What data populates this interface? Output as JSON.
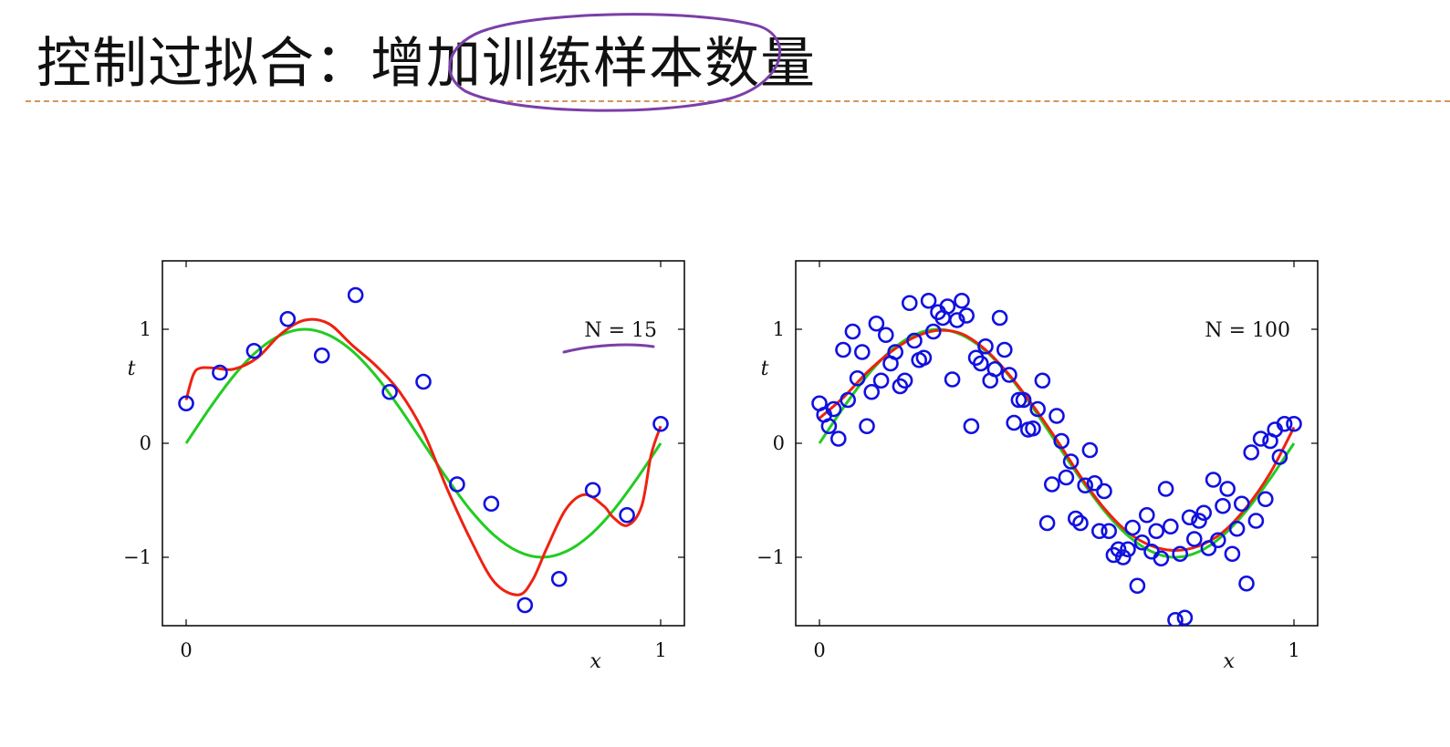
{
  "slide": {
    "title": "控制过拟合：增加训练样本数量"
  },
  "annotations": {
    "ink_color": "#7b3fa8"
  },
  "colors": {
    "points": "#1010e0",
    "true_curve": "#22cc22",
    "fit_curve": "#ee2211",
    "axis": "#000000"
  },
  "chart_data": [
    {
      "type": "scatter",
      "label": "N = 15",
      "xlabel": "x",
      "ylabel": "t",
      "xlim": [
        -0.05,
        1.05
      ],
      "ylim": [
        -1.6,
        1.6
      ],
      "x_ticks": [
        "0",
        "1"
      ],
      "y_ticks": [
        "−1",
        "0",
        "1"
      ],
      "series": [
        {
          "kind": "points",
          "x": [
            0.0,
            0.071,
            0.143,
            0.214,
            0.286,
            0.357,
            0.429,
            0.5,
            0.571,
            0.643,
            0.714,
            0.786,
            0.857,
            0.929,
            1.0
          ],
          "y": [
            0.35,
            0.62,
            0.81,
            1.09,
            0.77,
            1.3,
            0.45,
            0.54,
            -0.36,
            -0.53,
            -1.42,
            -1.19,
            -0.41,
            -0.63,
            0.17
          ]
        },
        {
          "kind": "line_true",
          "x": [
            0.0,
            0.05,
            0.1,
            0.15,
            0.2,
            0.25,
            0.3,
            0.35,
            0.4,
            0.45,
            0.5,
            0.55,
            0.6,
            0.65,
            0.7,
            0.75,
            0.8,
            0.85,
            0.9,
            0.95,
            1.0
          ],
          "y": [
            0.0,
            0.31,
            0.59,
            0.81,
            0.95,
            1.0,
            0.95,
            0.81,
            0.59,
            0.31,
            0.0,
            -0.31,
            -0.59,
            -0.81,
            -0.95,
            -1.0,
            -0.95,
            -0.81,
            -0.59,
            -0.31,
            0.0
          ]
        },
        {
          "kind": "line_fit",
          "x": [
            0.0,
            0.015,
            0.03,
            0.06,
            0.1,
            0.15,
            0.2,
            0.25,
            0.3,
            0.35,
            0.4,
            0.45,
            0.5,
            0.55,
            0.6,
            0.65,
            0.7,
            0.73,
            0.76,
            0.8,
            0.84,
            0.88,
            0.9,
            0.93,
            0.96,
            0.98,
            1.0
          ],
          "y": [
            0.38,
            0.6,
            0.66,
            0.66,
            0.65,
            0.75,
            0.96,
            1.08,
            1.05,
            0.86,
            0.68,
            0.45,
            0.1,
            -0.4,
            -0.85,
            -1.22,
            -1.33,
            -1.2,
            -0.92,
            -0.58,
            -0.45,
            -0.55,
            -0.65,
            -0.72,
            -0.55,
            -0.1,
            0.15
          ]
        }
      ]
    },
    {
      "type": "scatter",
      "label": "N = 100",
      "xlabel": "x",
      "ylabel": "t",
      "xlim": [
        -0.05,
        1.05
      ],
      "ylim": [
        -1.6,
        1.6
      ],
      "x_ticks": [
        "0",
        "1"
      ],
      "y_ticks": [
        "−1",
        "0",
        "1"
      ],
      "series": [
        {
          "kind": "points",
          "x": [
            0.0,
            0.01,
            0.02,
            0.03,
            0.04,
            0.05,
            0.06,
            0.07,
            0.08,
            0.09,
            0.1,
            0.11,
            0.12,
            0.13,
            0.14,
            0.15,
            0.16,
            0.17,
            0.18,
            0.19,
            0.2,
            0.21,
            0.22,
            0.23,
            0.24,
            0.25,
            0.26,
            0.27,
            0.28,
            0.29,
            0.3,
            0.31,
            0.32,
            0.33,
            0.34,
            0.35,
            0.36,
            0.37,
            0.38,
            0.39,
            0.4,
            0.41,
            0.42,
            0.43,
            0.44,
            0.45,
            0.46,
            0.47,
            0.48,
            0.49,
            0.5,
            0.51,
            0.52,
            0.53,
            0.54,
            0.55,
            0.56,
            0.57,
            0.58,
            0.59,
            0.6,
            0.61,
            0.62,
            0.63,
            0.64,
            0.65,
            0.66,
            0.67,
            0.68,
            0.69,
            0.7,
            0.71,
            0.72,
            0.73,
            0.74,
            0.75,
            0.76,
            0.77,
            0.78,
            0.79,
            0.8,
            0.81,
            0.82,
            0.83,
            0.84,
            0.85,
            0.86,
            0.87,
            0.88,
            0.89,
            0.9,
            0.91,
            0.92,
            0.93,
            0.94,
            0.95,
            0.96,
            0.97,
            0.98,
            1.0
          ],
          "y": [
            0.35,
            0.25,
            0.15,
            0.3,
            0.04,
            0.82,
            0.38,
            0.98,
            0.57,
            0.8,
            0.15,
            0.45,
            1.05,
            0.55,
            0.95,
            0.7,
            0.8,
            0.5,
            0.55,
            1.23,
            0.9,
            0.73,
            0.75,
            1.25,
            0.98,
            1.15,
            1.1,
            1.2,
            0.56,
            1.08,
            1.25,
            1.12,
            0.15,
            0.75,
            0.7,
            0.85,
            0.55,
            0.65,
            1.1,
            0.82,
            0.6,
            0.18,
            0.38,
            0.38,
            0.12,
            0.13,
            0.3,
            0.55,
            -0.7,
            -0.36,
            0.24,
            0.02,
            -0.3,
            -0.16,
            -0.66,
            -0.7,
            -0.37,
            -0.06,
            -0.35,
            -0.77,
            -0.42,
            -0.77,
            -0.98,
            -0.93,
            -1.0,
            -0.93,
            -0.74,
            -1.25,
            -0.87,
            -0.63,
            -0.95,
            -0.77,
            -1.01,
            -0.4,
            -0.73,
            -1.55,
            -0.97,
            -1.53,
            -0.65,
            -0.84,
            -0.68,
            -0.61,
            -0.92,
            -0.32,
            -0.85,
            -0.55,
            -0.4,
            -0.97,
            -0.75,
            -0.53,
            -1.23,
            -0.08,
            -0.68,
            0.04,
            -0.49,
            0.02,
            0.12,
            -0.12,
            0.17,
            0.17
          ]
        },
        {
          "kind": "line_true",
          "x": [
            0.0,
            0.05,
            0.1,
            0.15,
            0.2,
            0.25,
            0.3,
            0.35,
            0.4,
            0.45,
            0.5,
            0.55,
            0.6,
            0.65,
            0.7,
            0.75,
            0.8,
            0.85,
            0.9,
            0.95,
            1.0
          ],
          "y": [
            0.0,
            0.31,
            0.59,
            0.81,
            0.95,
            1.0,
            0.95,
            0.81,
            0.59,
            0.31,
            0.0,
            -0.31,
            -0.59,
            -0.81,
            -0.95,
            -1.0,
            -0.95,
            -0.81,
            -0.59,
            -0.31,
            0.0
          ]
        },
        {
          "kind": "line_fit",
          "x": [
            0.0,
            0.05,
            0.1,
            0.15,
            0.2,
            0.25,
            0.3,
            0.35,
            0.4,
            0.45,
            0.5,
            0.55,
            0.6,
            0.65,
            0.7,
            0.75,
            0.8,
            0.85,
            0.9,
            0.95,
            1.0
          ],
          "y": [
            0.22,
            0.4,
            0.62,
            0.8,
            0.93,
            0.99,
            0.96,
            0.82,
            0.6,
            0.33,
            0.03,
            -0.29,
            -0.57,
            -0.78,
            -0.9,
            -0.94,
            -0.9,
            -0.78,
            -0.56,
            -0.26,
            0.14
          ]
        }
      ]
    }
  ]
}
